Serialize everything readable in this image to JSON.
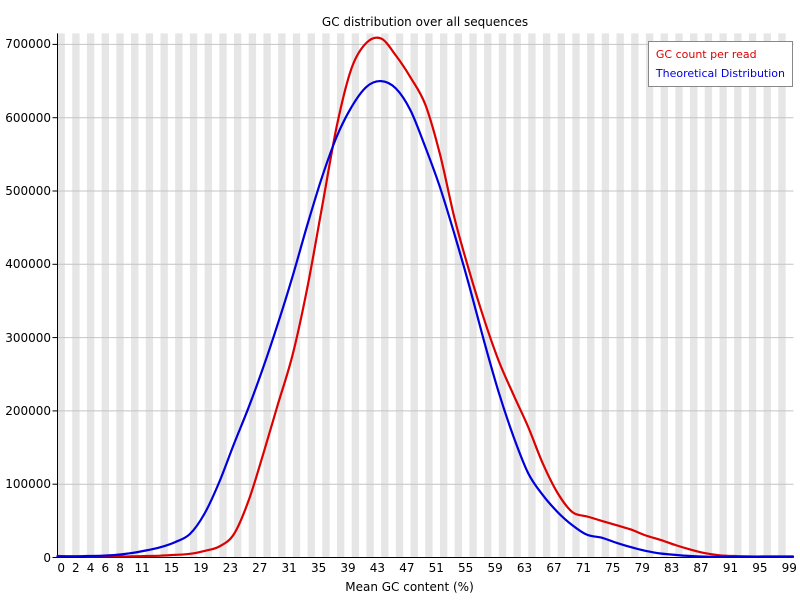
{
  "chart_data": {
    "type": "line",
    "title": "GC distribution over all sequences",
    "xlabel": "Mean GC content (%)",
    "ylabel": "",
    "xlim": [
      0,
      100
    ],
    "ylim": [
      0,
      715000
    ],
    "grid": "horizontal gridlines at each 100000 plus alternating vertical gray/white bands per GC bin",
    "legend_position": "top-right",
    "x_tick_labels": [
      0,
      2,
      4,
      6,
      8,
      11,
      15,
      19,
      23,
      27,
      31,
      35,
      39,
      43,
      47,
      51,
      55,
      59,
      63,
      67,
      71,
      75,
      79,
      83,
      87,
      91,
      95,
      99
    ],
    "y_ticks": [
      0,
      100000,
      200000,
      300000,
      400000,
      500000,
      600000,
      700000
    ],
    "x": [
      0,
      2,
      4,
      6,
      8,
      10,
      12,
      14,
      16,
      18,
      20,
      22,
      24,
      26,
      28,
      30,
      32,
      34,
      36,
      38,
      40,
      42,
      44,
      46,
      48,
      50,
      52,
      54,
      56,
      58,
      60,
      62,
      64,
      66,
      68,
      70,
      72,
      74,
      76,
      78,
      80,
      82,
      84,
      86,
      88,
      90,
      92,
      94,
      96,
      98,
      100
    ],
    "series": [
      {
        "name": "GC count per read",
        "color": "#dd0000",
        "values": [
          2000,
          1500,
          1500,
          1500,
          1500,
          1500,
          2000,
          2500,
          3500,
          5000,
          9000,
          15000,
          32000,
          78000,
          142000,
          210000,
          278000,
          370000,
          480000,
          590000,
          668000,
          702000,
          708000,
          685000,
          655000,
          618000,
          550000,
          462000,
          390000,
          325000,
          268000,
          222000,
          178000,
          128000,
          88000,
          62000,
          56000,
          50000,
          44000,
          38000,
          30000,
          24000,
          17000,
          11000,
          6000,
          3000,
          2000,
          1500,
          1500,
          1500,
          1500
        ]
      },
      {
        "name": "Theoretical Distribution",
        "color": "#0000dd",
        "values": [
          1500,
          1500,
          2000,
          2500,
          3500,
          6000,
          9500,
          14000,
          21000,
          32000,
          60000,
          103000,
          155000,
          205000,
          260000,
          320000,
          385000,
          455000,
          520000,
          575000,
          615000,
          642000,
          650000,
          640000,
          610000,
          560000,
          505000,
          440000,
          370000,
          295000,
          225000,
          165000,
          115000,
          85000,
          62000,
          44000,
          31000,
          27000,
          20000,
          14000,
          9000,
          5500,
          3500,
          2000,
          1200,
          800,
          500,
          500,
          500,
          500,
          500
        ]
      }
    ]
  },
  "colors": {
    "stripe": "#e6e6e6",
    "grid": "#c4c4c4",
    "axis": "#000000",
    "background": "#ffffff",
    "legend_border": "#888888"
  }
}
